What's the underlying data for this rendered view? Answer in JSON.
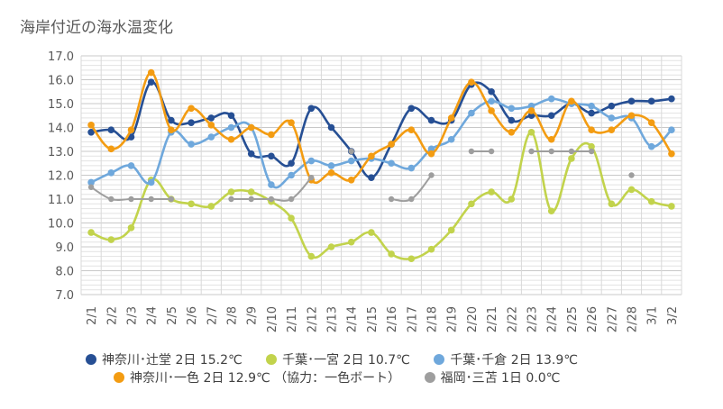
{
  "chart_data": {
    "type": "line",
    "title": "海岸付近の海水温変化",
    "ylim": [
      7.0,
      17.0
    ],
    "yticks": [
      "7.0",
      "8.0",
      "9.0",
      "10.0",
      "11.0",
      "12.0",
      "13.0",
      "14.0",
      "15.0",
      "16.0",
      "17.0"
    ],
    "categories": [
      "2/1",
      "2/2",
      "2/3",
      "2/4",
      "2/5",
      "2/6",
      "2/7",
      "2/8",
      "2/9",
      "2/10",
      "2/11",
      "2/12",
      "2/13",
      "2/14",
      "2/15",
      "2/16",
      "2/17",
      "2/18",
      "2/19",
      "2/20",
      "2/21",
      "2/22",
      "2/23",
      "2/24",
      "2/25",
      "2/26",
      "2/27",
      "2/28",
      "3/1",
      "3/2"
    ],
    "grid": true,
    "legend_position": "bottom",
    "series": [
      {
        "name": "神奈川･辻堂 2日 15.2℃",
        "color": "#264f94",
        "values": [
          13.8,
          13.9,
          13.6,
          15.9,
          14.3,
          14.2,
          14.4,
          14.5,
          12.9,
          12.8,
          12.5,
          14.8,
          14.0,
          13.0,
          11.9,
          13.3,
          14.8,
          14.3,
          14.3,
          15.8,
          15.5,
          14.3,
          14.5,
          14.5,
          15.0,
          14.6,
          14.9,
          15.1,
          15.1,
          15.2
        ]
      },
      {
        "name": "千葉･一宮 2日 10.7℃",
        "color": "#c2d34c",
        "values": [
          9.6,
          9.3,
          9.8,
          11.8,
          11.0,
          10.8,
          10.7,
          11.3,
          11.3,
          10.9,
          10.2,
          8.6,
          9.0,
          9.2,
          9.6,
          8.7,
          8.5,
          8.9,
          9.7,
          10.8,
          11.3,
          11.0,
          13.8,
          10.5,
          12.7,
          13.2,
          10.8,
          11.4,
          10.9,
          10.7
        ]
      },
      {
        "name": "千葉･千倉 2日 13.9℃",
        "color": "#6fa8dc",
        "values": [
          11.7,
          12.1,
          12.4,
          11.7,
          13.8,
          13.3,
          13.6,
          14.0,
          14.0,
          11.6,
          12.0,
          12.6,
          12.4,
          12.6,
          12.7,
          12.5,
          12.3,
          13.1,
          13.5,
          14.6,
          15.1,
          14.8,
          14.9,
          15.2,
          15.0,
          14.9,
          14.4,
          14.4,
          13.2,
          13.9
        ]
      },
      {
        "name": "神奈川･一色 2日 12.9℃ （協力：一色ボート）",
        "color": "#f39c12",
        "values": [
          14.1,
          13.1,
          13.9,
          16.3,
          13.9,
          14.8,
          14.1,
          13.5,
          14.0,
          13.7,
          14.2,
          11.8,
          12.1,
          11.8,
          12.8,
          13.3,
          13.9,
          12.9,
          14.4,
          15.9,
          14.7,
          13.8,
          14.7,
          13.5,
          15.1,
          13.9,
          13.9,
          14.5,
          14.2,
          12.9
        ]
      },
      {
        "name": "福岡･三苫 1日 0.0℃",
        "color": "#9e9e9e",
        "values": [
          11.5,
          11.0,
          11.0,
          11.0,
          11.0,
          null,
          null,
          11.0,
          11.0,
          11.0,
          11.0,
          11.9,
          null,
          13.0,
          null,
          11.0,
          11.0,
          12.0,
          null,
          13.0,
          13.0,
          null,
          13.0,
          13.0,
          13.0,
          13.0,
          null,
          12.0,
          null,
          null
        ]
      }
    ]
  }
}
